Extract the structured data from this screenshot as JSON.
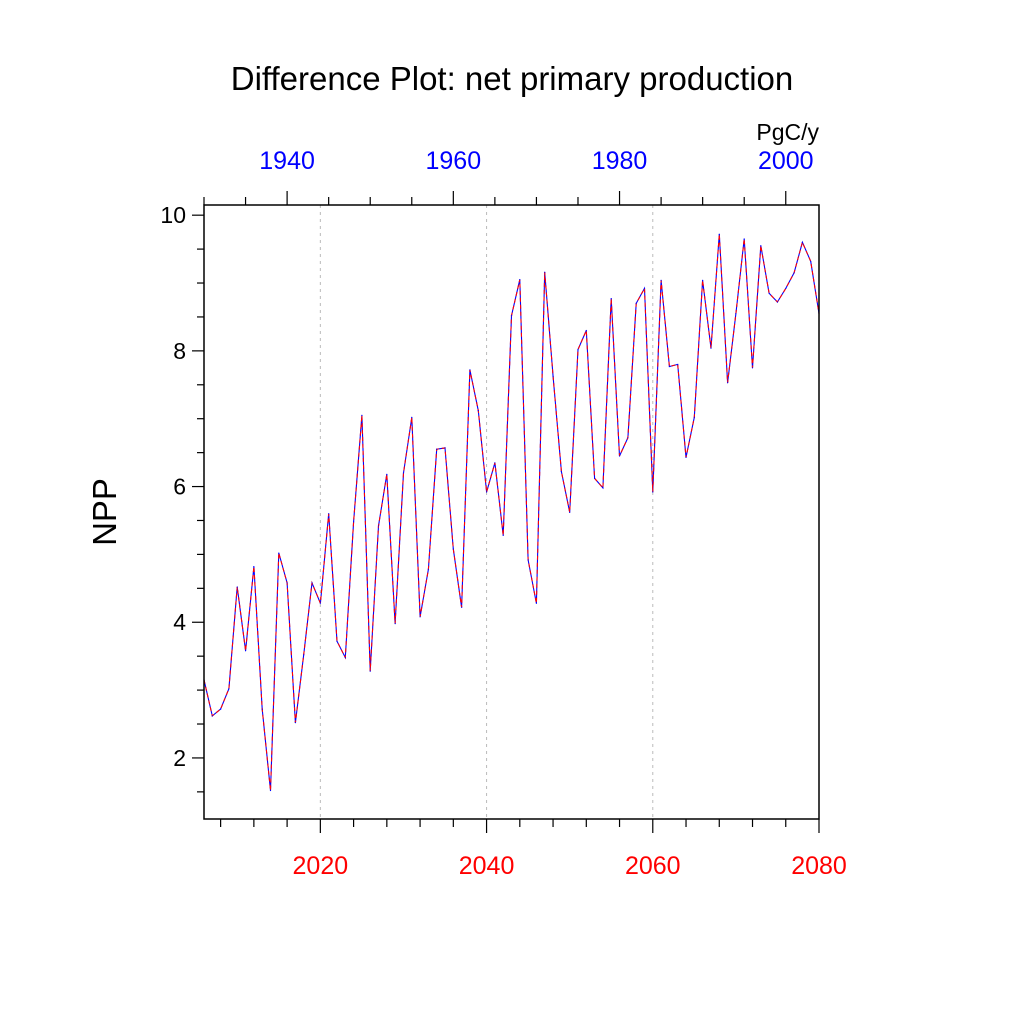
{
  "chart_data": {
    "type": "line",
    "title": "Difference Plot: net primary production",
    "units": "PgC/y",
    "ylabel": "NPP",
    "xlabel": "",
    "ylim": [
      1.1,
      10.15
    ],
    "xlim_bottom": [
      2006,
      2080
    ],
    "xlim_top": [
      1930,
      2004
    ],
    "y_ticks": [
      2,
      4,
      6,
      8,
      10
    ],
    "y_minor_step": 0.5,
    "x_bottom_ticks": [
      2020,
      2040,
      2060,
      2080
    ],
    "x_bottom_minor_step": 4,
    "x_top_ticks": [
      1940,
      1960,
      1980,
      2000
    ],
    "x_top_minor_step": 5,
    "grid": "vertical dashed at bottom-axis major ticks",
    "colors": {
      "bottom_axis": "#ff0000",
      "top_axis": "#0000ff",
      "series_a": "#ff0000",
      "series_b": "#0000ff",
      "grid": "#bbbbbb",
      "frame": "#000000"
    },
    "series": [
      {
        "name": "dashed",
        "x": [
          2006,
          2007,
          2008,
          2009,
          2010,
          2011,
          2012,
          2013,
          2014,
          2015,
          2016,
          2017,
          2018,
          2019,
          2020,
          2021,
          2022,
          2023,
          2024,
          2025,
          2026,
          2027,
          2028,
          2029,
          2030,
          2031,
          2032,
          2033,
          2034,
          2035,
          2036,
          2037,
          2038,
          2039,
          2040,
          2041,
          2042,
          2043,
          2044,
          2045,
          2046,
          2047,
          2048,
          2049,
          2050,
          2051,
          2052,
          2053,
          2054,
          2055,
          2056,
          2057,
          2058,
          2059,
          2060,
          2061,
          2062,
          2063,
          2064,
          2065,
          2066,
          2067,
          2068,
          2069,
          2070,
          2071,
          2072,
          2073,
          2074,
          2075,
          2076,
          2077,
          2078,
          2079,
          2080
        ],
        "values": [
          3.15,
          2.62,
          2.72,
          3.02,
          4.52,
          3.58,
          4.82,
          2.72,
          1.52,
          5.02,
          4.58,
          2.52,
          3.52,
          4.58,
          4.28,
          5.6,
          3.72,
          3.48,
          5.48,
          7.05,
          3.28,
          5.42,
          6.18,
          3.98,
          6.2,
          7.02,
          4.08,
          4.78,
          6.55,
          6.57,
          5.08,
          4.22,
          7.72,
          7.12,
          5.92,
          6.35,
          5.28,
          8.52,
          9.05,
          4.92,
          4.28,
          9.16,
          7.62,
          6.22,
          5.62,
          8.02,
          8.3,
          6.12,
          5.98,
          8.77,
          6.45,
          6.72,
          8.7,
          8.92,
          5.92,
          9.04,
          7.77,
          7.8,
          6.43,
          7.02,
          9.04,
          8.04,
          9.72,
          7.53,
          8.55,
          9.65,
          7.75,
          9.55,
          8.85,
          8.72,
          8.92,
          9.15,
          9.6,
          9.32,
          8.55
        ]
      }
    ]
  }
}
